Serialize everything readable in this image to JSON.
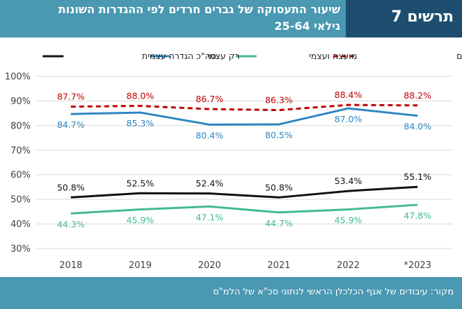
{
  "header": {
    "title_line1": "שיעור התעסוקה של גברים חרדים לפי ההגדרות השונות",
    "title_line2": "גילאי 25-64",
    "figure_label": "תרשים 7"
  },
  "footer": {
    "source": "מקור: עיבודים של אגף הכלכלן הראשי לנתוני סכ\"א של הלמ\"ס"
  },
  "colors": {
    "title_bar": "#4a98b2",
    "figure_box": "#1d4e6f",
    "self": "#2e86c1",
    "council_self": "#45b896",
    "total": "#111111",
    "non_haredi": "#c00000"
  },
  "chart_data": {
    "type": "line",
    "categories": [
      "2018",
      "2019",
      "2020",
      "2021",
      "2022",
      "*2023"
    ],
    "ylim": [
      30,
      100
    ],
    "yticks": [
      "30%",
      "40%",
      "50%",
      "60%",
      "70%",
      "80%",
      "90%",
      "100%"
    ],
    "grid": true,
    "legend_placement": "top",
    "series": [
      {
        "name": "סה\"כ הגדרה עצמית",
        "values": [
          50.8,
          52.5,
          52.4,
          50.8,
          53.4,
          55.1
        ],
        "labels": [
          "50.8%",
          "52.5%",
          "52.4%",
          "50.8%",
          "53.4%",
          "55.1%"
        ],
        "color": "#111111",
        "dashed": false,
        "label_pos": "above"
      },
      {
        "name": "רק עצמי",
        "values": [
          84.7,
          85.3,
          80.4,
          80.5,
          87.0,
          84.0
        ],
        "labels": [
          "84.7%",
          "85.3%",
          "80.4%",
          "80.5%",
          "87.0%",
          "84.0%"
        ],
        "color": "#2e86c1",
        "dashed": false,
        "label_pos": "below"
      },
      {
        "name": "מועצה ועצמי",
        "values": [
          44.3,
          45.9,
          47.1,
          44.7,
          45.9,
          47.8
        ],
        "labels": [
          "44.3%",
          "45.9%",
          "47.1%",
          "44.7%",
          "45.9%",
          "47.8%"
        ],
        "color": "#45b896",
        "dashed": false,
        "label_pos": "below"
      },
      {
        "name": "גברים יהודים שאינם חרדים",
        "values": [
          87.7,
          88.0,
          86.7,
          86.3,
          88.4,
          88.2
        ],
        "labels": [
          "87.7%",
          "88.0%",
          "86.7%",
          "86.3%",
          "88.4%",
          "88.2%"
        ],
        "color": "#c00000",
        "dashed": true,
        "label_pos": "above"
      }
    ]
  }
}
